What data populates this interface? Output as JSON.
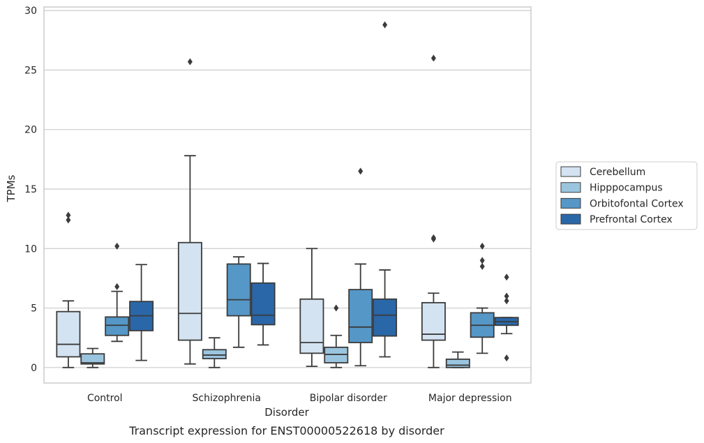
{
  "chart_data": {
    "type": "box",
    "title": "",
    "caption": "Transcript expression for ENST00000522618 by disorder",
    "xlabel": "Disorder",
    "ylabel": "TPMs",
    "ylim": [
      -1.3,
      30.3
    ],
    "yticks": [
      "0",
      "5",
      "10",
      "15",
      "20",
      "25",
      "30"
    ],
    "grid": "horizontal",
    "legend_position": "right",
    "categories": [
      "Control",
      "Schizophrenia",
      "Bipolar disorder",
      "Major depression"
    ],
    "series": [
      {
        "name": "Cerebellum",
        "color": "#d4e3f1",
        "boxes": [
          {
            "whislo": 0.0,
            "q1": 0.9,
            "med": 1.95,
            "q3": 4.7,
            "whishi": 5.6,
            "fliers": [
              12.4,
              12.8
            ]
          },
          {
            "whislo": 0.3,
            "q1": 2.3,
            "med": 4.55,
            "q3": 10.5,
            "whishi": 17.8,
            "fliers": [
              25.7
            ]
          },
          {
            "whislo": 0.1,
            "q1": 1.2,
            "med": 2.1,
            "q3": 5.75,
            "whishi": 10.0,
            "fliers": []
          },
          {
            "whislo": 0.0,
            "q1": 2.3,
            "med": 2.8,
            "q3": 5.45,
            "whishi": 6.25,
            "fliers": [
              10.8,
              10.9,
              26.0
            ]
          }
        ]
      },
      {
        "name": "Hipppocampus",
        "color": "#9bc5df",
        "boxes": [
          {
            "whislo": 0.0,
            "q1": 0.3,
            "med": 0.4,
            "q3": 1.15,
            "whishi": 1.6,
            "fliers": []
          },
          {
            "whislo": 0.0,
            "q1": 0.75,
            "med": 1.05,
            "q3": 1.5,
            "whishi": 2.5,
            "fliers": []
          },
          {
            "whislo": 0.0,
            "q1": 0.4,
            "med": 1.1,
            "q3": 1.7,
            "whishi": 2.7,
            "fliers": [
              5.0
            ]
          },
          {
            "whislo": 0.0,
            "q1": 0.0,
            "med": 0.2,
            "q3": 0.7,
            "whishi": 1.3,
            "fliers": []
          }
        ]
      },
      {
        "name": "Orbitofontal Cortex",
        "color": "#5597c7",
        "boxes": [
          {
            "whislo": 2.2,
            "q1": 2.7,
            "med": 3.55,
            "q3": 4.25,
            "whishi": 6.4,
            "fliers": [
              6.8,
              10.2
            ]
          },
          {
            "whislo": 1.7,
            "q1": 4.35,
            "med": 5.7,
            "q3": 8.7,
            "whishi": 9.3,
            "fliers": []
          },
          {
            "whislo": 0.15,
            "q1": 2.1,
            "med": 3.4,
            "q3": 6.55,
            "whishi": 8.7,
            "fliers": [
              16.5
            ]
          },
          {
            "whislo": 1.2,
            "q1": 2.55,
            "med": 3.55,
            "q3": 4.6,
            "whishi": 5.0,
            "fliers": [
              8.5,
              9.0,
              10.2
            ]
          }
        ]
      },
      {
        "name": "Prefrontal Cortex",
        "color": "#2a67a8",
        "boxes": [
          {
            "whislo": 0.6,
            "q1": 3.1,
            "med": 4.35,
            "q3": 5.55,
            "whishi": 8.65,
            "fliers": []
          },
          {
            "whislo": 1.9,
            "q1": 3.6,
            "med": 4.4,
            "q3": 7.1,
            "whishi": 8.75,
            "fliers": []
          },
          {
            "whislo": 0.9,
            "q1": 2.65,
            "med": 4.4,
            "q3": 5.75,
            "whishi": 8.2,
            "fliers": [
              28.8
            ]
          },
          {
            "whislo": 2.85,
            "q1": 3.55,
            "med": 3.85,
            "q3": 4.2,
            "whishi": 4.2,
            "fliers": [
              0.8,
              5.6,
              6.0,
              7.6
            ]
          }
        ]
      }
    ]
  }
}
